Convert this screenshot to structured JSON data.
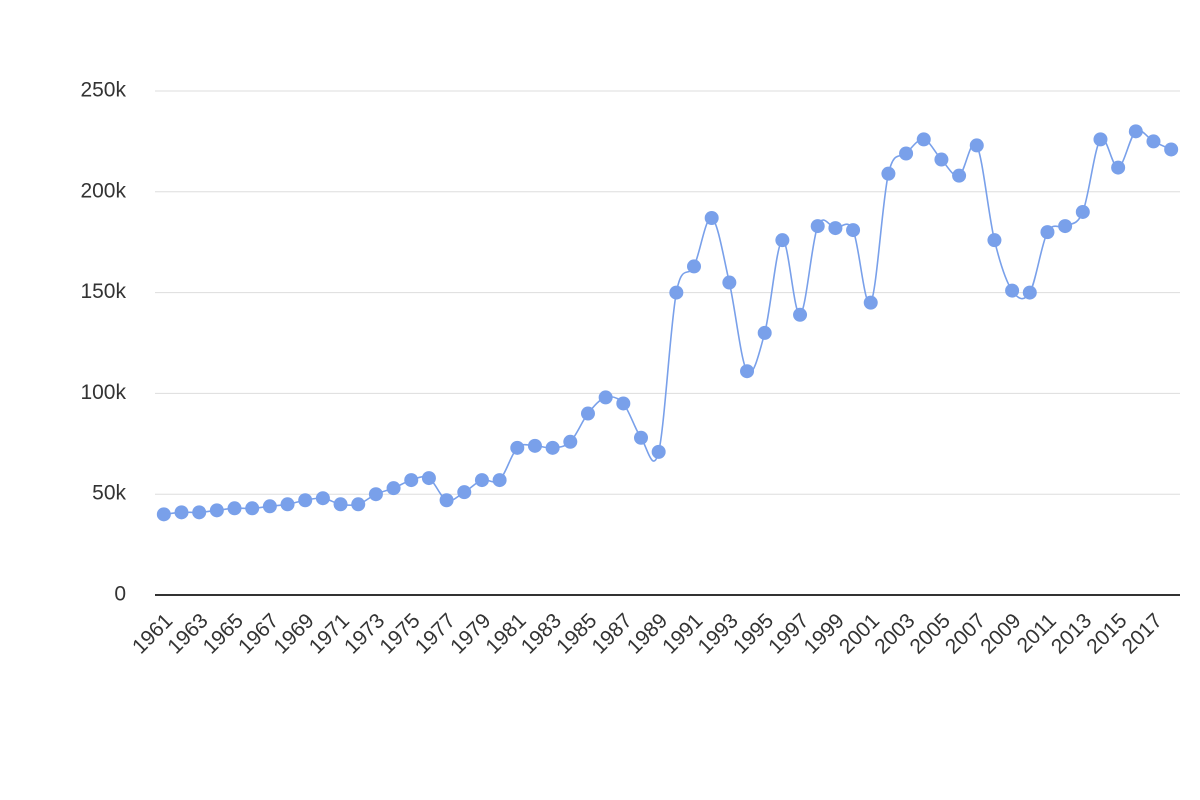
{
  "chart_data": {
    "type": "line",
    "x": [
      1961,
      1962,
      1963,
      1964,
      1965,
      1966,
      1967,
      1968,
      1969,
      1970,
      1971,
      1972,
      1973,
      1974,
      1975,
      1976,
      1977,
      1978,
      1979,
      1980,
      1981,
      1982,
      1983,
      1984,
      1985,
      1986,
      1987,
      1988,
      1989,
      1990,
      1991,
      1992,
      1993,
      1994,
      1995,
      1996,
      1997,
      1998,
      1999,
      2000,
      2001,
      2002,
      2003,
      2004,
      2005,
      2006,
      2007,
      2008,
      2009,
      2010,
      2011,
      2012,
      2013,
      2014,
      2015,
      2016,
      2017,
      2018
    ],
    "series": [
      {
        "color": "#79a0ea",
        "values": [
          40000,
          41000,
          41000,
          42000,
          43000,
          43000,
          44000,
          45000,
          47000,
          48000,
          45000,
          45000,
          50000,
          53000,
          57000,
          58000,
          47000,
          51000,
          57000,
          57000,
          73000,
          74000,
          73000,
          76000,
          90000,
          98000,
          95000,
          78000,
          71000,
          150000,
          163000,
          187000,
          155000,
          111000,
          130000,
          176000,
          139000,
          183000,
          182000,
          181000,
          145000,
          209000,
          219000,
          226000,
          216000,
          208000,
          223000,
          176000,
          151000,
          150000,
          180000,
          183000,
          190000,
          226000,
          212000,
          230000,
          225000,
          221000
        ]
      }
    ],
    "xlim": [
      1960.5,
      2018.5
    ],
    "xticks": [
      1961,
      1963,
      1965,
      1967,
      1969,
      1971,
      1973,
      1975,
      1977,
      1979,
      1981,
      1983,
      1985,
      1987,
      1989,
      1991,
      1993,
      1995,
      1997,
      1999,
      2001,
      2003,
      2005,
      2007,
      2009,
      2011,
      2013,
      2015,
      2017
    ],
    "ylim": [
      0,
      250000
    ],
    "yticks": [
      0,
      {
        "value": 50000,
        "label": "50k"
      },
      {
        "value": 100000,
        "label": "100k"
      },
      {
        "value": 150000,
        "label": "150k"
      },
      {
        "value": 200000,
        "label": "200k"
      },
      {
        "value": 250000,
        "label": "250k"
      }
    ],
    "grid": true
  }
}
